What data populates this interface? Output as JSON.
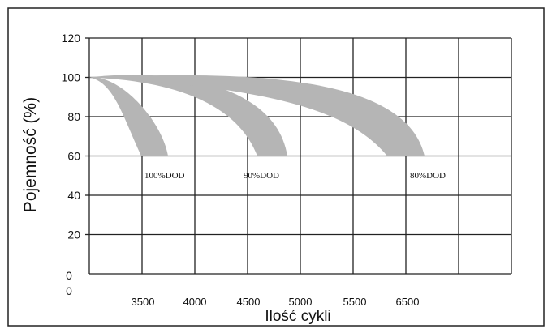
{
  "chart_data": {
    "type": "area",
    "ylabel": "Pojemność (%)",
    "xlabel": "Ilość cykli",
    "y_ticks": [
      "120",
      "100",
      "80",
      "60",
      "40",
      "20",
      "0"
    ],
    "origin_label": "0",
    "x_ticks": [
      "3500",
      "4000",
      "4500",
      "5000",
      "5500",
      "6500"
    ],
    "ylim": [
      0,
      120
    ],
    "grid": true,
    "series": [
      {
        "name": "100%DOD",
        "label": "100%DOD",
        "color": "#b5b5b5",
        "start": 100,
        "end": 60
      },
      {
        "name": "90%DOD",
        "label": "90%DOD",
        "color": "#b5b5b5",
        "start": 100,
        "end": 60
      },
      {
        "name": "80%DOD",
        "label": "80%DOD",
        "color": "#b5b5b5",
        "start": 100,
        "end": 60
      }
    ]
  }
}
